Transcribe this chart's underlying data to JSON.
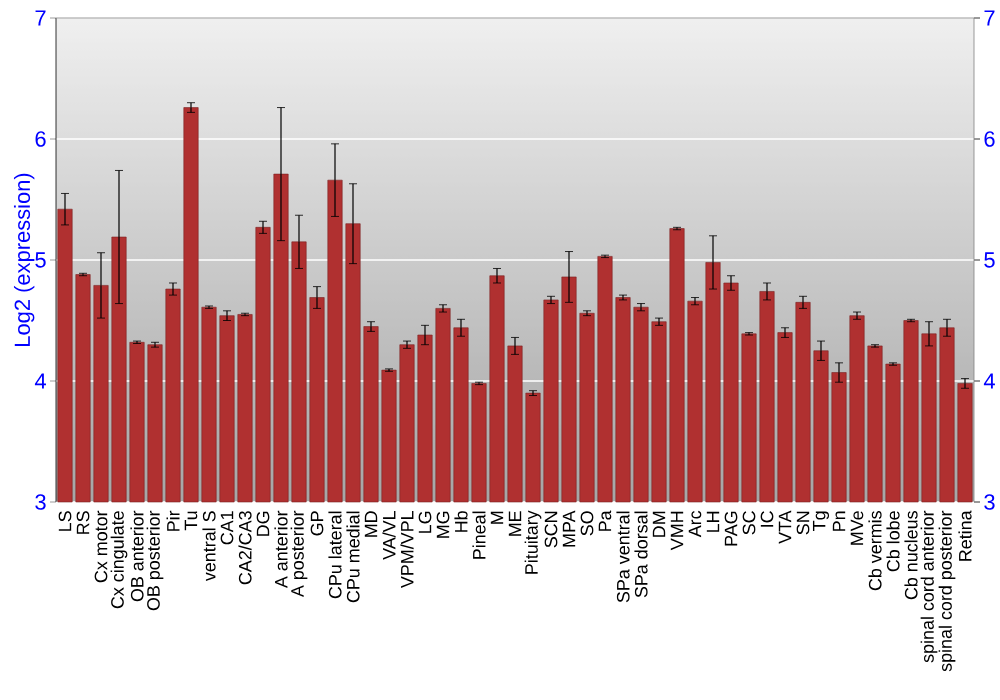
{
  "chart_data": {
    "type": "bar",
    "ylabel": "Log2 (expression)",
    "categories": [
      "LS",
      "RS",
      "Cx motor",
      "Cx cingulate",
      "OB anterior",
      "OB posterior",
      "Pir",
      "Tu",
      "ventral S",
      "CA1",
      "CA2/CA3",
      "DG",
      "A anterior",
      "A posterior",
      "GP",
      "CPu lateral",
      "CPu medial",
      "MD",
      "VA/VL",
      "VPM/VPL",
      "LG",
      "MG",
      "Hb",
      "Pineal",
      "M",
      "ME",
      "Pituitary",
      "SCN",
      "MPA",
      "SO",
      "Pa",
      "SPa ventral",
      "SPa dorsal",
      "DM",
      "VMH",
      "Arc",
      "LH",
      "PAG",
      "SC",
      "IC",
      "VTA",
      "SN",
      "Tg",
      "Pn",
      "MVe",
      "Cb vermis",
      "Cb lobe",
      "Cb nucleus",
      "spinal cord anterior",
      "spinal cord posterior",
      "Retina"
    ],
    "values": [
      5.42,
      4.88,
      4.79,
      5.19,
      4.32,
      4.3,
      4.76,
      6.26,
      4.61,
      4.54,
      4.55,
      5.27,
      5.71,
      5.15,
      4.69,
      5.66,
      5.3,
      4.45,
      4.09,
      4.3,
      4.38,
      4.6,
      4.44,
      3.98,
      4.87,
      4.29,
      3.9,
      4.67,
      4.86,
      4.56,
      5.03,
      4.69,
      4.61,
      4.49,
      5.26,
      4.66,
      4.98,
      4.81,
      4.39,
      4.74,
      4.4,
      4.65,
      4.25,
      4.07,
      4.54,
      4.29,
      4.14,
      4.5,
      4.39,
      4.44,
      3.98
    ],
    "errors": [
      0.13,
      0.01,
      0.27,
      0.55,
      0.01,
      0.02,
      0.05,
      0.04,
      0.01,
      0.04,
      0.01,
      0.05,
      0.55,
      0.22,
      0.09,
      0.3,
      0.33,
      0.04,
      0.01,
      0.03,
      0.08,
      0.03,
      0.07,
      0.01,
      0.06,
      0.07,
      0.02,
      0.03,
      0.21,
      0.02,
      0.01,
      0.02,
      0.03,
      0.03,
      0.01,
      0.03,
      0.22,
      0.06,
      0.01,
      0.07,
      0.04,
      0.05,
      0.08,
      0.08,
      0.03,
      0.01,
      0.01,
      0.01,
      0.1,
      0.07,
      0.04
    ],
    "color": "#b03030",
    "ylim": [
      3,
      7
    ],
    "yticks": [
      3,
      4,
      5,
      6,
      7
    ],
    "y2lim": [
      3,
      7
    ],
    "y2ticks": [
      3,
      4,
      5,
      6,
      7
    ],
    "grid": "y"
  }
}
